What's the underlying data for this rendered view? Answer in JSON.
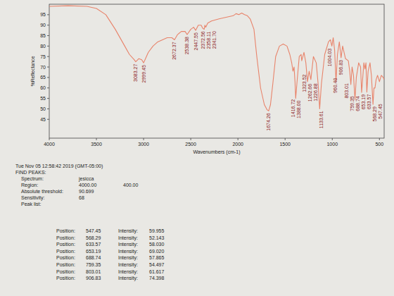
{
  "chart_data": {
    "type": "line",
    "y_label": "%Reflectance",
    "x_label": "Wavenumbers (cm-1)",
    "x": [
      4000,
      3800,
      3600,
      3500,
      3400,
      3300,
      3200,
      3150,
      3100,
      3083.27,
      3050,
      3020,
      2999.45,
      2980,
      2950,
      2900,
      2850,
      2800,
      2750,
      2700,
      2672.37,
      2640,
      2600,
      2560,
      2538.38,
      2500,
      2470,
      2447.55,
      2420,
      2390,
      2372.56,
      2358.11,
      2350,
      2341.7,
      2320,
      2280,
      2200,
      2150,
      2100,
      2050,
      2020,
      1990,
      1960,
      1930,
      1900,
      1870,
      1830,
      1800,
      1760,
      1720,
      1690,
      1674.26,
      1655,
      1630,
      1600,
      1560,
      1520,
      1480,
      1450,
      1430,
      1416.72,
      1405,
      1395,
      1388,
      1375,
      1350,
      1330,
      1323.52,
      1300,
      1280,
      1262.66,
      1245,
      1226.88,
      1200,
      1170,
      1150,
      1133.61,
      1115,
      1080,
      1040,
      1020,
      1004.03,
      990,
      975,
      960.4,
      945,
      925,
      906.83,
      890,
      860,
      830,
      815,
      803.01,
      790,
      775,
      759.35,
      745,
      720,
      700,
      688.74,
      675,
      665,
      653.19,
      643,
      633.57,
      620,
      600,
      585,
      568.29,
      558,
      547.45,
      535,
      520,
      500,
      480,
      460,
      450
    ],
    "series": [
      {
        "color": "#e8836a",
        "values": [
          99,
          99.3,
          99,
          98,
          95,
          88,
          80,
          76,
          73.5,
          72.5,
          74,
          73.5,
          72,
          74,
          77,
          80,
          82,
          83,
          84,
          84,
          83,
          85.5,
          87,
          87,
          85.5,
          88,
          89,
          87.5,
          90,
          90,
          88.5,
          88,
          90,
          89,
          91,
          92,
          93,
          93.5,
          94,
          94.5,
          95.5,
          95,
          95.8,
          95,
          94.5,
          93,
          88,
          75,
          60,
          52,
          49.5,
          49,
          52,
          62,
          75,
          80,
          81,
          80,
          76,
          72,
          68,
          70,
          63,
          55,
          62,
          75,
          76,
          73,
          77,
          72,
          63,
          68,
          64,
          75,
          72,
          62,
          50,
          62,
          76,
          82,
          83,
          80,
          84,
          78,
          63,
          76,
          82,
          74.398,
          80,
          74,
          73,
          68,
          61.617,
          70,
          66,
          54.497,
          65,
          72,
          70,
          57.865,
          66,
          72,
          69.02,
          72,
          58.03,
          68,
          72,
          66,
          52.143,
          60,
          59.955,
          64,
          66,
          63,
          66,
          65,
          64
        ]
      }
    ],
    "xlim": [
      4000,
      450
    ],
    "xticks": [
      4000,
      3500,
      3000,
      2500,
      2000,
      1500,
      1000,
      500
    ],
    "ylim": [
      36,
      100
    ],
    "yticks": [
      45,
      50,
      55,
      60,
      65,
      70,
      75,
      80,
      85,
      90,
      95
    ],
    "grid": false,
    "peak_labels": [
      3083.27,
      2999.45,
      2672.37,
      2538.38,
      2447.55,
      2372.56,
      2358.11,
      {
        "value": 2341.7,
        "label": "2341.70"
      },
      1674.26,
      1416.72,
      {
        "value": 1388,
        "label": "1388.00"
      },
      1323.52,
      1262.66,
      1226.88,
      1133.61,
      1004.03,
      {
        "value": 960.4,
        "label": "960.40"
      },
      906.83,
      803.01,
      759.35,
      688.74,
      653.19,
      633.57,
      568.29,
      547.45
    ]
  },
  "report": {
    "timestamp": "Tue Nov 05 12:58:42 2019 (GMT-05:00)",
    "heading": "FIND PEAKS:",
    "fields": [
      {
        "label": "Spectrum:",
        "values": [
          "jesicca"
        ]
      },
      {
        "label": "Region:",
        "values": [
          "4000.00",
          "400.00"
        ]
      },
      {
        "label": "Absolute threshold:",
        "values": [
          "90.699"
        ]
      },
      {
        "label": "Sensitivity:",
        "values": [
          "68"
        ]
      }
    ],
    "peak_list_label": "Peak list:",
    "peaks": [
      {
        "position_label": "Position:",
        "position": "547.45",
        "intensity_label": "Intensity:",
        "intensity": "59.955"
      },
      {
        "position_label": "Position:",
        "position": "568.29",
        "intensity_label": "Intensity:",
        "intensity": "52.143"
      },
      {
        "position_label": "Position:",
        "position": "633.57",
        "intensity_label": "Intensity:",
        "intensity": "58.030"
      },
      {
        "position_label": "Position:",
        "position": "653.19",
        "intensity_label": "Intensity:",
        "intensity": "69.020"
      },
      {
        "position_label": "Position:",
        "position": "688.74",
        "intensity_label": "Intensity:",
        "intensity": "57.865"
      },
      {
        "position_label": "Position:",
        "position": "759.35",
        "intensity_label": "Intensity:",
        "intensity": "54.497"
      },
      {
        "position_label": "Position:",
        "position": "803.01",
        "intensity_label": "Intensity:",
        "intensity": "61.617"
      },
      {
        "position_label": "Position:",
        "position": "906.83",
        "intensity_label": "Intensity:",
        "intensity": "74.398"
      }
    ]
  }
}
